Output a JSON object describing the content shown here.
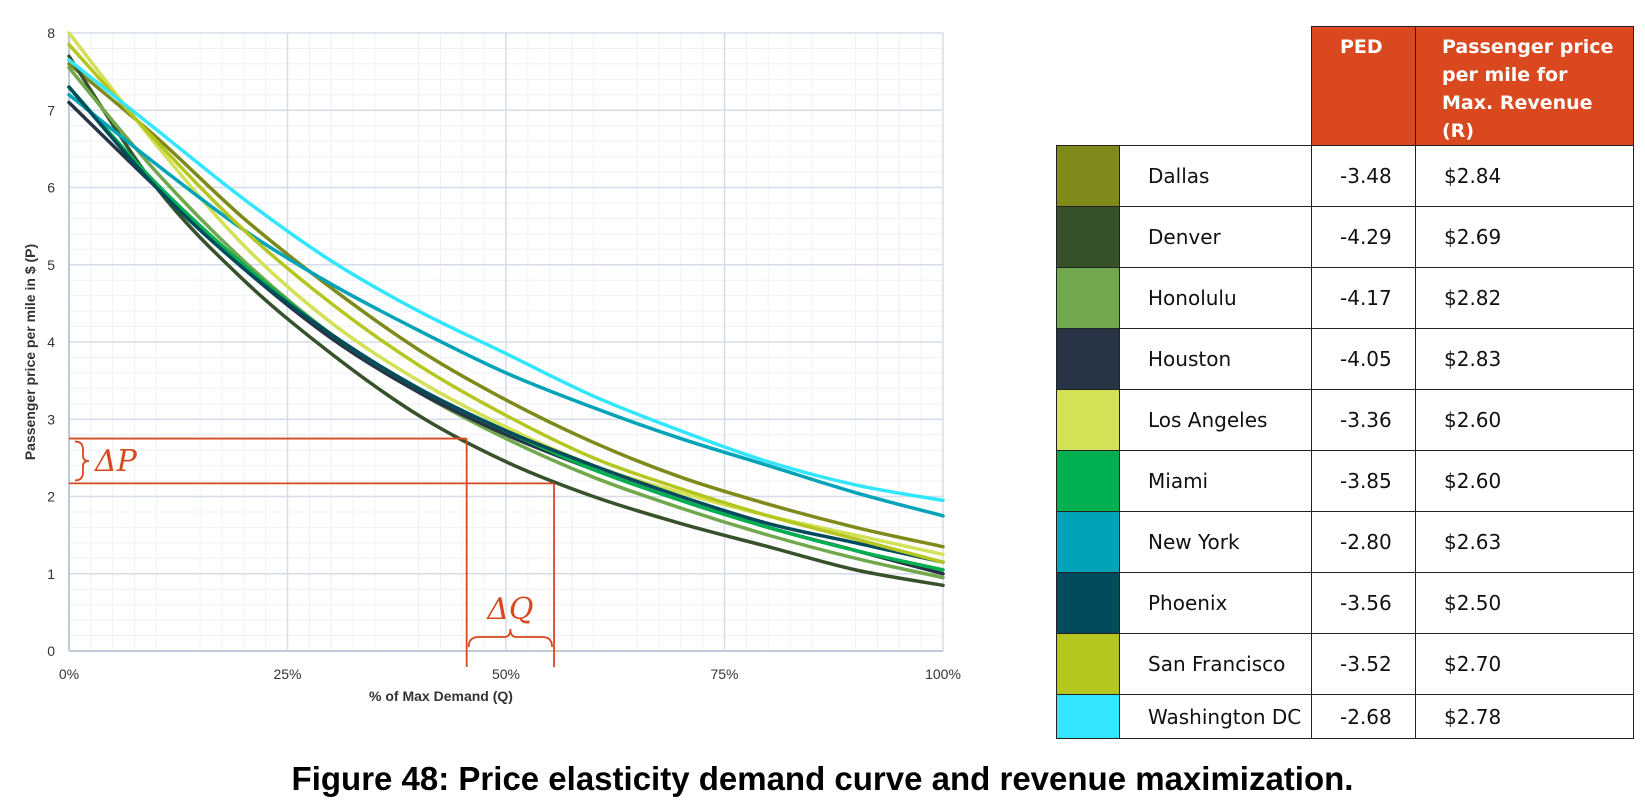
{
  "chart_data": {
    "type": "line",
    "xlabel": "% of Max Demand (Q)",
    "ylabel": "Passenger price per mile  in $ (P)",
    "xlim": [
      0,
      100
    ],
    "ylim": [
      0,
      8
    ],
    "x_ticks": [
      "0%",
      "25%",
      "50%",
      "75%",
      "100%"
    ],
    "y_ticks": [
      "0",
      "1",
      "2",
      "3",
      "4",
      "5",
      "6",
      "7",
      "8"
    ],
    "grid": true,
    "x": [
      0,
      10,
      20,
      30,
      40,
      50,
      60,
      70,
      80,
      90,
      100
    ],
    "series": [
      {
        "name": "Dallas",
        "color": "#7f8a1a",
        "values": [
          7.6,
          6.65,
          5.6,
          4.7,
          3.9,
          3.25,
          2.7,
          2.25,
          1.9,
          1.6,
          1.35
        ]
      },
      {
        "name": "Denver",
        "color": "#37512a",
        "values": [
          7.7,
          6.0,
          4.8,
          3.85,
          3.05,
          2.45,
          2.0,
          1.65,
          1.35,
          1.05,
          0.85
        ]
      },
      {
        "name": "Honolulu",
        "color": "#72a84d",
        "values": [
          7.55,
          6.2,
          5.05,
          4.1,
          3.35,
          2.75,
          2.25,
          1.85,
          1.5,
          1.2,
          0.95
        ]
      },
      {
        "name": "Houston",
        "color": "#263445",
        "values": [
          7.1,
          6.0,
          4.95,
          4.05,
          3.35,
          2.8,
          2.35,
          1.95,
          1.6,
          1.3,
          1.0
        ]
      },
      {
        "name": "Los Angeles",
        "color": "#d4e157",
        "values": [
          8.0,
          6.55,
          5.25,
          4.25,
          3.5,
          2.9,
          2.4,
          2.05,
          1.75,
          1.5,
          1.25
        ]
      },
      {
        "name": "Miami",
        "color": "#00b050",
        "values": [
          7.3,
          6.05,
          5.0,
          4.1,
          3.4,
          2.85,
          2.35,
          1.95,
          1.6,
          1.3,
          1.05
        ]
      },
      {
        "name": "New York",
        "color": "#00a3b8",
        "values": [
          7.2,
          6.3,
          5.45,
          4.75,
          4.15,
          3.6,
          3.15,
          2.75,
          2.4,
          2.05,
          1.75
        ]
      },
      {
        "name": "Phoenix",
        "color": "#004c5c",
        "values": [
          7.3,
          6.0,
          4.95,
          4.1,
          3.4,
          2.85,
          2.4,
          2.0,
          1.65,
          1.4,
          1.15
        ]
      },
      {
        "name": "San Francisco",
        "color": "#b5c61f",
        "values": [
          7.85,
          6.6,
          5.45,
          4.5,
          3.7,
          3.05,
          2.5,
          2.1,
          1.75,
          1.45,
          1.15
        ]
      },
      {
        "name": "Washington DC",
        "color": "#33e6ff",
        "values": [
          7.65,
          6.75,
          5.85,
          5.05,
          4.4,
          3.85,
          3.3,
          2.85,
          2.45,
          2.15,
          1.95
        ]
      }
    ],
    "annotation": {
      "delta_p_label": "ΔP",
      "delta_q_label": "ΔQ",
      "q1": 45.5,
      "q2": 55.5,
      "p1": 2.75,
      "p2": 2.17,
      "color": "#d9481e"
    }
  },
  "table": {
    "headers": {
      "ped": "PED",
      "price": "Passenger price per mile for Max. Revenue (R)"
    },
    "rows": [
      {
        "city": "Dallas",
        "ped": "-3.48",
        "price": "$2.84",
        "color": "#7f8a1a"
      },
      {
        "city": "Denver",
        "ped": "-4.29",
        "price": "$2.69",
        "color": "#37512a"
      },
      {
        "city": "Honolulu",
        "ped": "-4.17",
        "price": "$2.82",
        "color": "#72a84d"
      },
      {
        "city": "Houston",
        "ped": "-4.05",
        "price": "$2.83",
        "color": "#263445"
      },
      {
        "city": "Los Angeles",
        "ped": "-3.36",
        "price": "$2.60",
        "color": "#d4e157"
      },
      {
        "city": "Miami",
        "ped": "-3.85",
        "price": "$2.60",
        "color": "#00b050"
      },
      {
        "city": "New York",
        "ped": "-2.80",
        "price": "$2.63",
        "color": "#00a3b8"
      },
      {
        "city": "Phoenix",
        "ped": "-3.56",
        "price": "$2.50",
        "color": "#004c5c"
      },
      {
        "city": "San Francisco",
        "ped": "-3.52",
        "price": "$2.70",
        "color": "#b5c61f"
      },
      {
        "city": "Washington DC",
        "ped": "-2.68",
        "price": "$2.78",
        "color": "#33e6ff"
      }
    ]
  },
  "caption": "Figure 48: Price elasticity demand curve and revenue maximization."
}
